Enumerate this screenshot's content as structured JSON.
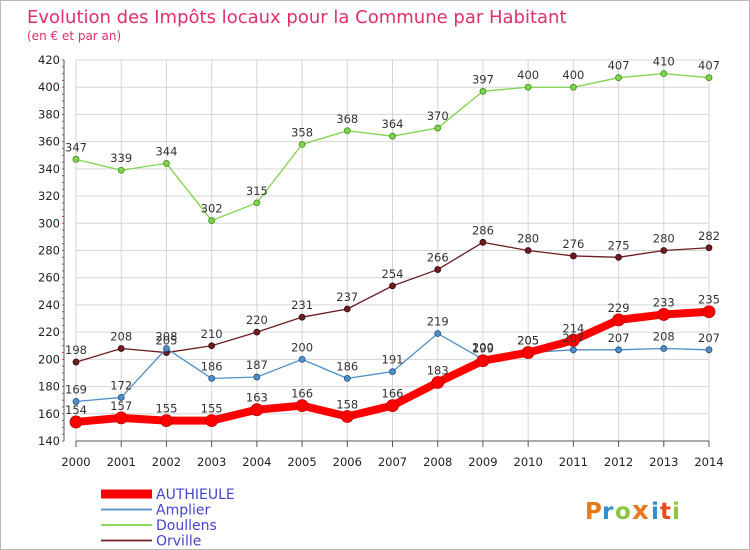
{
  "chart_data": {
    "type": "line",
    "title": "Evolution des Impôts locaux pour la Commune par Habitant",
    "subtitle": "(en € et par an)",
    "xlabel": "",
    "ylabel": "",
    "x": [
      "2000",
      "2001",
      "2002",
      "2003",
      "2004",
      "2005",
      "2006",
      "2007",
      "2008",
      "2009",
      "2010",
      "2011",
      "2012",
      "2013",
      "2014"
    ],
    "ylim": [
      140,
      420
    ],
    "yticks": [
      "140",
      "160",
      "180",
      "200",
      "220",
      "240",
      "260",
      "280",
      "300",
      "320",
      "340",
      "360",
      "380",
      "400",
      "420"
    ],
    "grid": true,
    "legend_position": "bottom-left",
    "series": [
      {
        "name": "AUTHIEULE",
        "color": "#ff0000",
        "values": [
          154,
          157,
          155,
          155,
          163,
          166,
          158,
          166,
          183,
          199,
          205,
          214,
          229,
          233,
          235
        ],
        "labels": [
          "154",
          "157",
          "155",
          "155",
          "163",
          "166",
          "158",
          "166",
          "183",
          "199",
          "205",
          "214",
          "229",
          "233",
          "235"
        ]
      },
      {
        "name": "Amplier",
        "color": "#4f8fc8",
        "values": [
          169,
          172,
          208,
          186,
          187,
          200,
          186,
          191,
          219,
          200,
          205,
          207,
          207,
          208,
          207
        ],
        "labels": [
          "169",
          "172",
          "208",
          "186",
          "187",
          "200",
          "186",
          "191",
          "219",
          "200",
          "205",
          "207",
          "207",
          "208",
          "207"
        ]
      },
      {
        "name": "Doullens",
        "color": "#7ed44a",
        "values": [
          347,
          339,
          344,
          302,
          315,
          358,
          368,
          364,
          370,
          397,
          400,
          400,
          407,
          410,
          407
        ],
        "labels": [
          "347",
          "339",
          "344",
          "302",
          "315",
          "358",
          "368",
          "364",
          "370",
          "397",
          "400",
          "400",
          "407",
          "410",
          "407"
        ]
      },
      {
        "name": "Orville",
        "color": "#6b1d22",
        "values": [
          198,
          208,
          205,
          210,
          220,
          231,
          237,
          254,
          266,
          286,
          280,
          276,
          275,
          280,
          282
        ],
        "labels": [
          "198",
          "208",
          "205",
          "210",
          "220",
          "231",
          "237",
          "254",
          "266",
          "286",
          "280",
          "276",
          "275",
          "280",
          "282"
        ]
      }
    ]
  },
  "branding": {
    "logo_text": "Proxiti",
    "letters": [
      {
        "ch": "P",
        "color": "#e87a1e"
      },
      {
        "ch": "r",
        "color": "#2f8fd0"
      },
      {
        "ch": "o",
        "color": "#8cc640"
      },
      {
        "ch": "x",
        "color": "#e87a1e"
      },
      {
        "ch": "i",
        "color": "#2f8fd0"
      },
      {
        "ch": "t",
        "color": "#e84a1e"
      },
      {
        "ch": "i",
        "color": "#8cc640"
      }
    ]
  },
  "colors": {
    "title": "#e0306a",
    "axis_text": "#222222",
    "grid": "#d8d8d8"
  }
}
